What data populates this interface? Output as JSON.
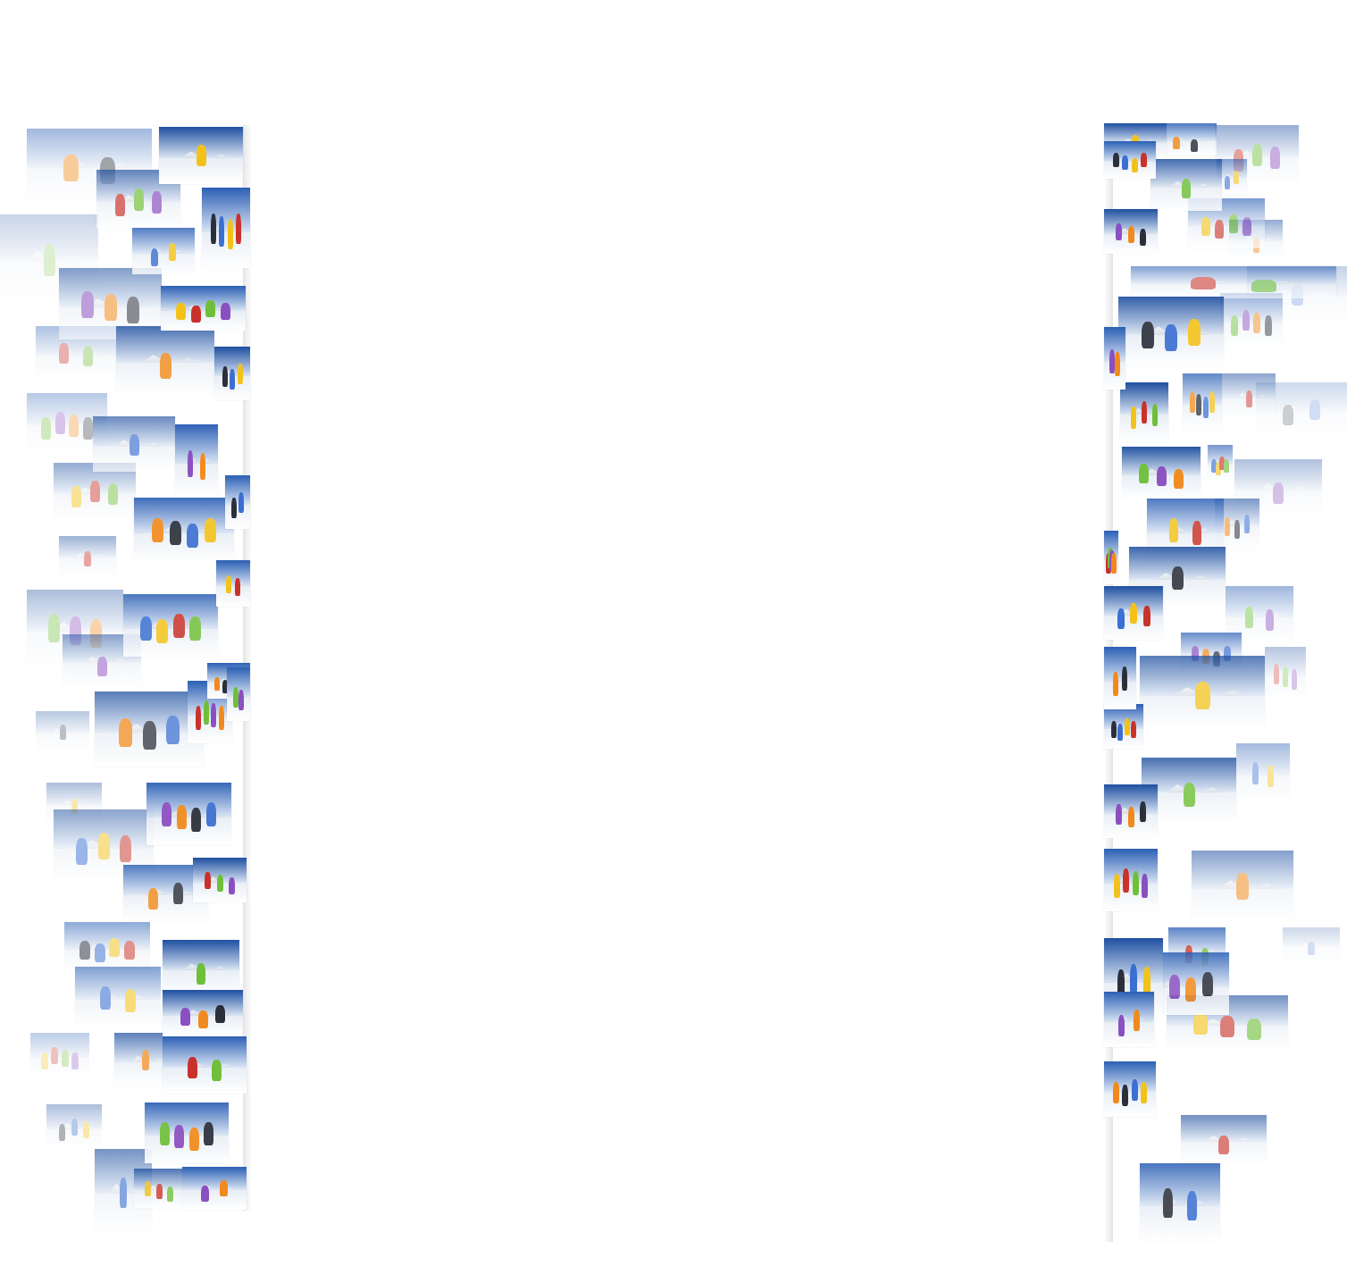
{
  "page": {
    "background": "#ffffff"
  },
  "collages": {
    "left": {
      "label": "",
      "theme": "ski-photo-collage",
      "photo_count": 44
    },
    "right": {
      "label": "",
      "theme": "ski-photo-collage",
      "photo_count": 46
    }
  },
  "palette": {
    "sky_deep": "#1e4fa0",
    "sky_mid": "#4a7fcc",
    "sky_pale": "#c9d8ee",
    "snow": "#f3f6fa",
    "jacket_yellow": "#f2c21b",
    "jacket_orange": "#f08a1c",
    "jacket_red": "#c8322a",
    "jacket_dark": "#2a2f3a",
    "jacket_green": "#6fbf3a"
  }
}
